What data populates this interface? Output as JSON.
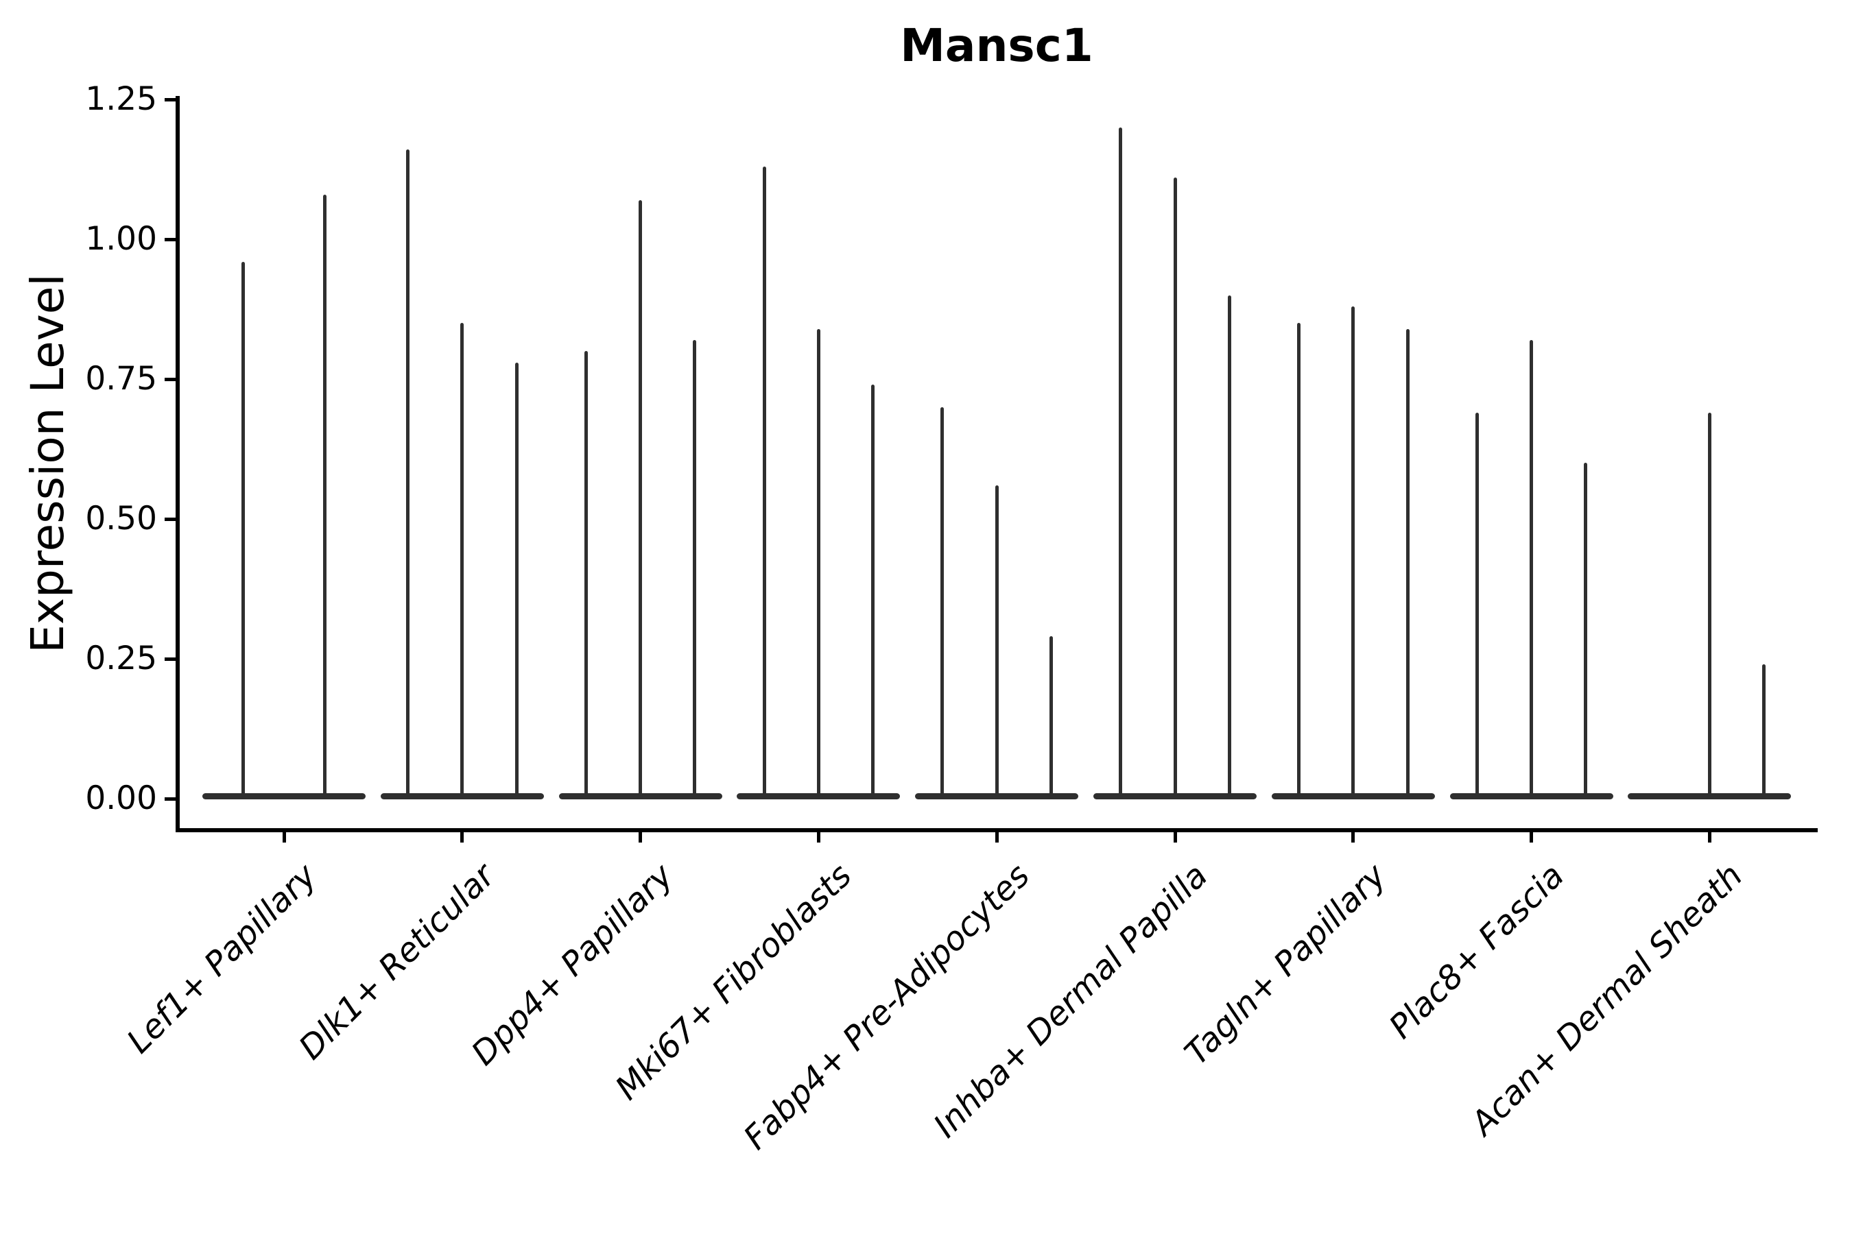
{
  "figure": {
    "background_color": "#ffffff",
    "text_color": "#000000",
    "violin_color": "#2f2f2f"
  },
  "chart_data": {
    "type": "violin",
    "title": "Mansc1",
    "xlabel": "",
    "ylabel": "Expression Level",
    "grid": false,
    "legend": null,
    "ylim": [
      -0.06,
      1.26
    ],
    "yticks": [
      0.0,
      0.25,
      0.5,
      0.75,
      1.0,
      1.25
    ],
    "ytick_labels": [
      "0.00",
      "0.25",
      "0.50",
      "0.75",
      "1.00",
      "1.25"
    ],
    "categories": [
      "Lef1+ Papillary",
      "Dlk1+ Reticular",
      "Dpp4+ Papillary",
      "Mki67+ Fibroblasts",
      "Fabp4+ Pre-Adipocytes",
      "Inhba+ Dermal Papilla",
      "Tagln+ Papillary",
      "Plac8+ Fascia",
      "Acan+ Dermal Sheath"
    ],
    "groups": [
      {
        "category": "Lef1+ Papillary",
        "violin_max_values": [
          0.96,
          1.08
        ]
      },
      {
        "category": "Dlk1+ Reticular",
        "violin_max_values": [
          1.16,
          0.85,
          0.78
        ]
      },
      {
        "category": "Dpp4+ Papillary",
        "violin_max_values": [
          0.8,
          1.07,
          0.82
        ]
      },
      {
        "category": "Mki67+ Fibroblasts",
        "violin_max_values": [
          1.13,
          0.84,
          0.74
        ]
      },
      {
        "category": "Fabp4+ Pre-Adipocytes",
        "violin_max_values": [
          0.7,
          0.56,
          0.29
        ]
      },
      {
        "category": "Inhba+ Dermal Papilla",
        "violin_max_values": [
          1.2,
          1.11,
          0.9
        ]
      },
      {
        "category": "Tagln+ Papillary",
        "violin_max_values": [
          0.85,
          0.88,
          0.84
        ]
      },
      {
        "category": "Plac8+ Fascia",
        "violin_max_values": [
          0.69,
          0.82,
          0.6
        ]
      },
      {
        "category": "Acan+ Dermal Sheath",
        "violin_max_values": [
          0.0,
          0.69,
          0.24
        ]
      }
    ],
    "note": "Each violin is a near-flat density at 0 expression with a thin spike to its maximum value"
  }
}
